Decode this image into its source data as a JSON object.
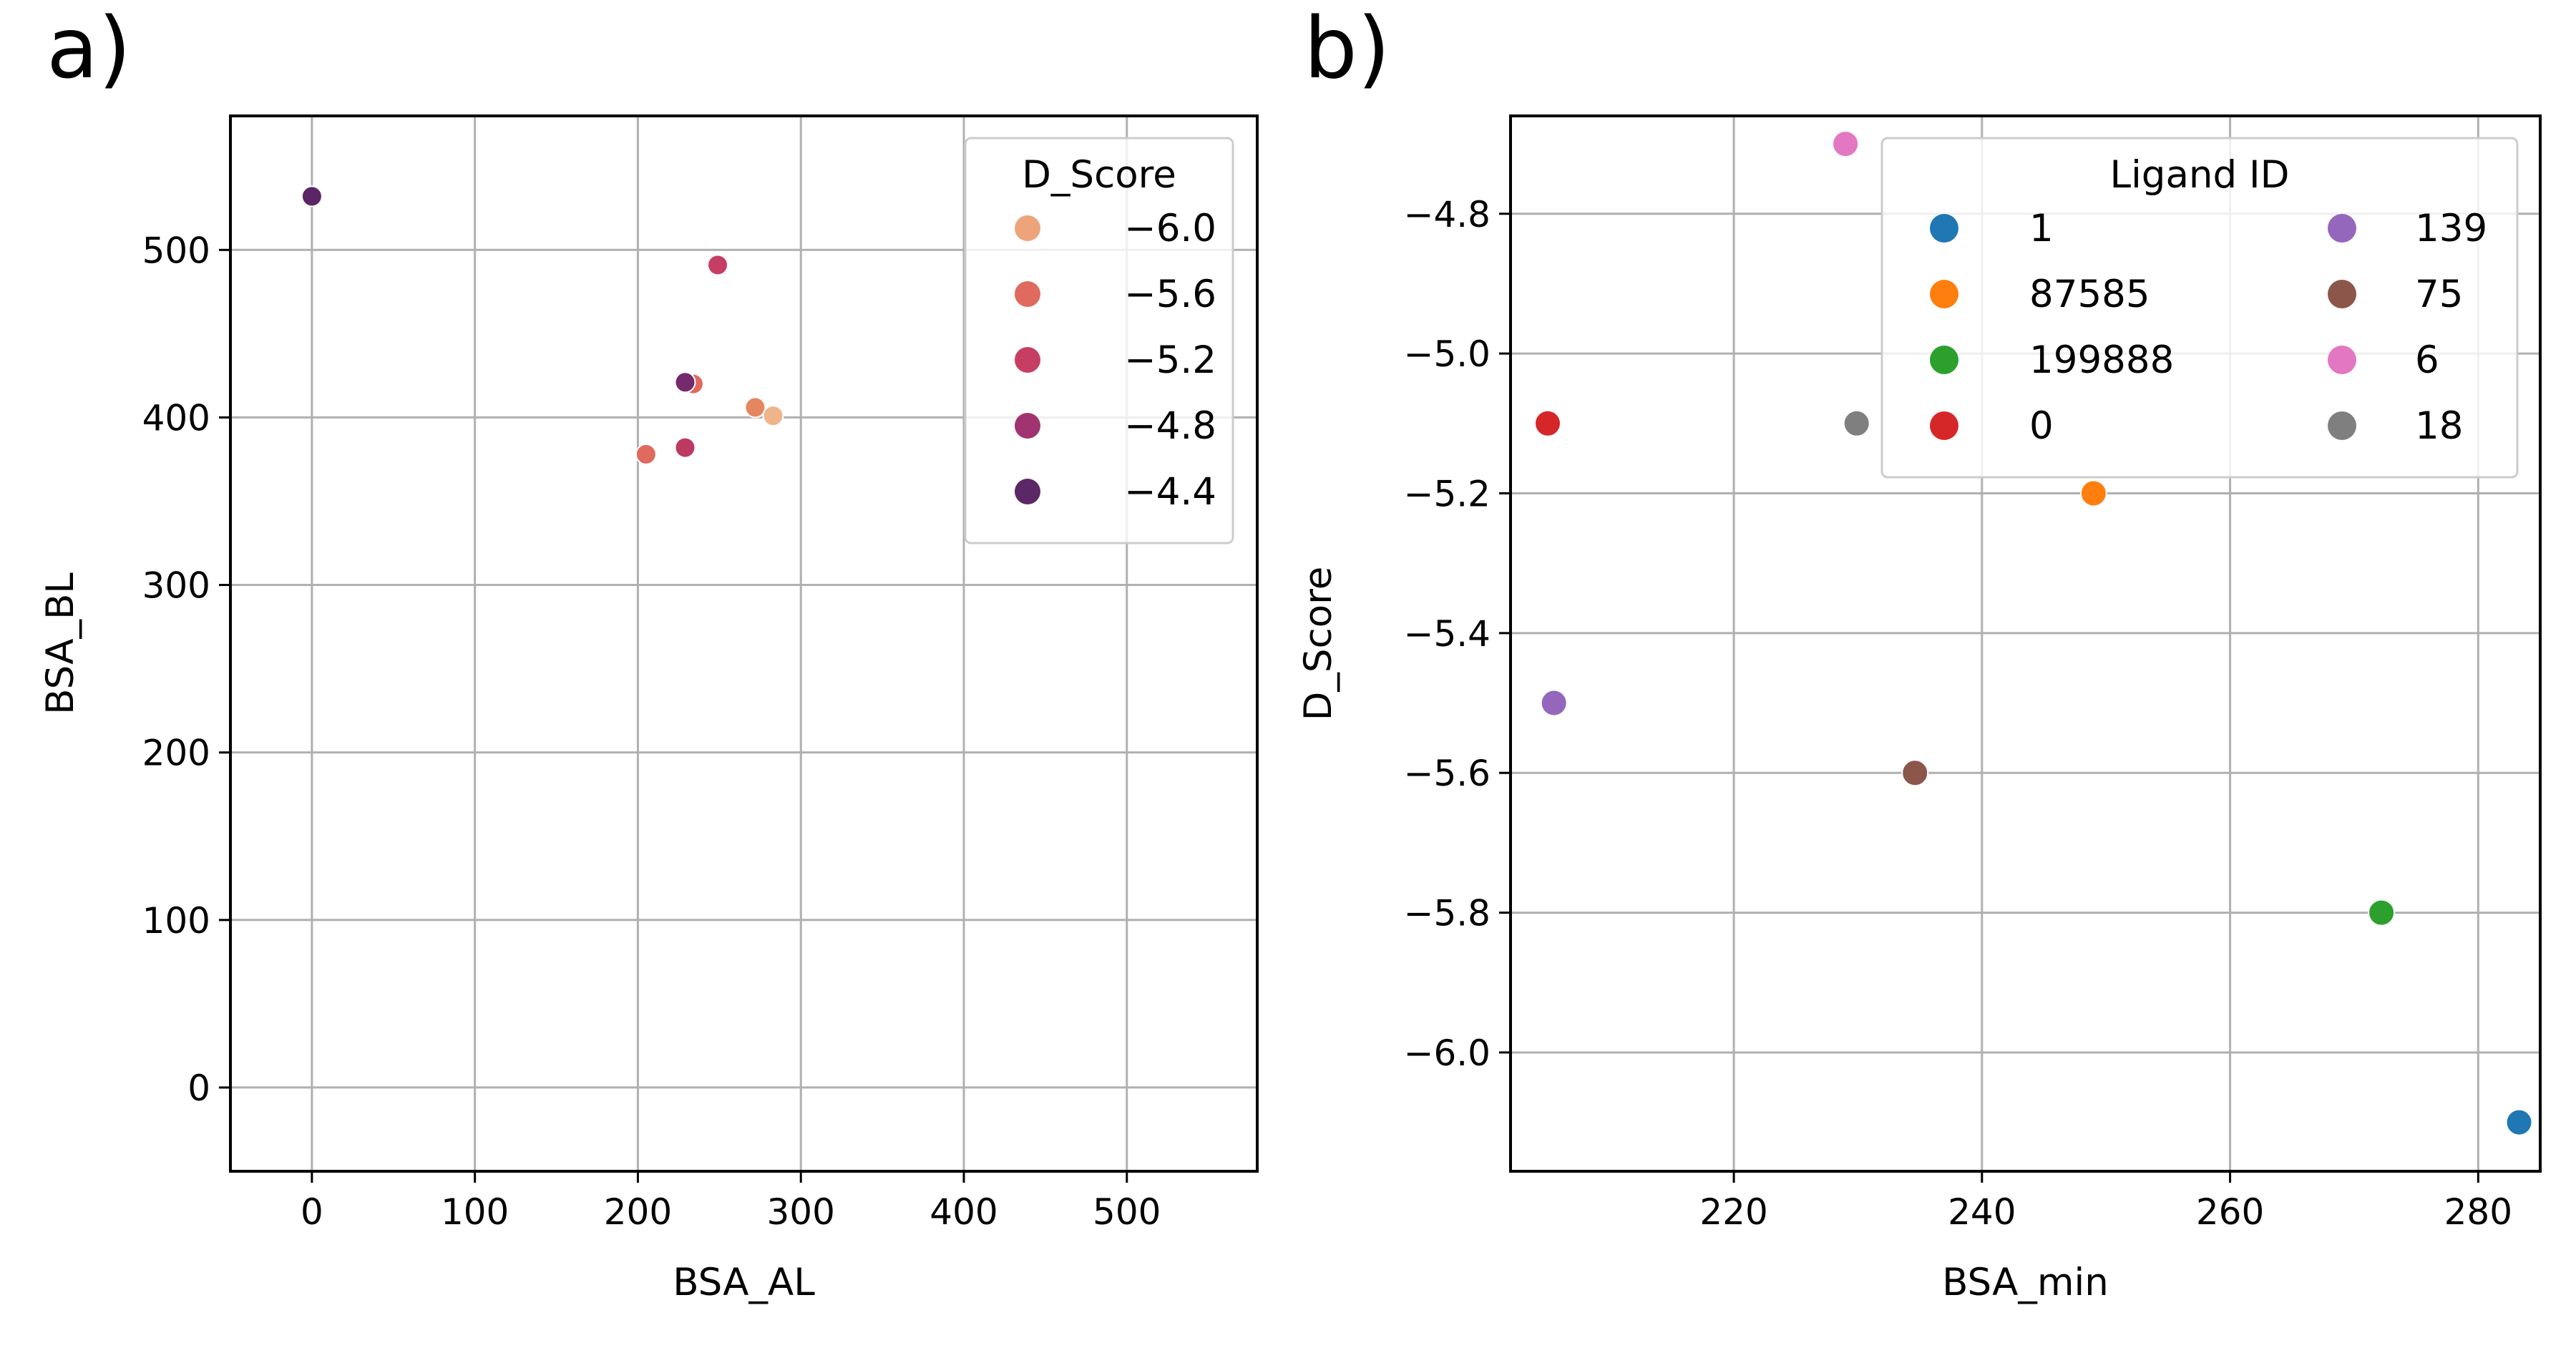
{
  "chart_data": [
    {
      "panel_label": "a)",
      "type": "scatter",
      "xlabel": "BSA_AL",
      "ylabel": "BSA_BL",
      "xlim": [
        -50,
        580
      ],
      "ylim": [
        -50,
        580
      ],
      "xticks": [
        0,
        100,
        200,
        300,
        400,
        500
      ],
      "yticks": [
        0,
        100,
        200,
        300,
        400,
        500
      ],
      "xtick_labels": [
        "0",
        "100",
        "200",
        "300",
        "400",
        "500"
      ],
      "ytick_labels": [
        "0",
        "100",
        "200",
        "300",
        "400",
        "500"
      ],
      "grid": true,
      "legend": {
        "title": "D_Score",
        "placement": "top-right",
        "entries": [
          {
            "label": "−6.0",
            "value": -6.0,
            "color": "#eda47b"
          },
          {
            "label": "−5.6",
            "value": -5.6,
            "color": "#e06a5e"
          },
          {
            "label": "−5.2",
            "value": -5.2,
            "color": "#c63f62"
          },
          {
            "label": "−4.8",
            "value": -4.8,
            "color": "#a13470"
          },
          {
            "label": "−4.4",
            "value": -4.4,
            "color": "#5c2767"
          }
        ]
      },
      "points": [
        {
          "x": 0,
          "y": 532,
          "d_score": -4.4,
          "color": "#5a2665"
        },
        {
          "x": 249,
          "y": 491,
          "d_score": -5.2,
          "color": "#c63f62"
        },
        {
          "x": 234,
          "y": 420,
          "d_score": -5.6,
          "color": "#e06a5e"
        },
        {
          "x": 229,
          "y": 421,
          "d_score": -4.8,
          "color": "#752a6e"
        },
        {
          "x": 272,
          "y": 406,
          "d_score": -5.8,
          "color": "#e6865f"
        },
        {
          "x": 283,
          "y": 401,
          "d_score": -6.1,
          "color": "#efb489"
        },
        {
          "x": 205,
          "y": 378,
          "d_score": -5.5,
          "color": "#e06a5e"
        },
        {
          "x": 229,
          "y": 382,
          "d_score": -5.1,
          "color": "#bc3a61"
        }
      ]
    },
    {
      "panel_label": "b)",
      "type": "scatter",
      "xlabel": "BSA_min",
      "ylabel": "D_Score",
      "xlim": [
        202,
        285
      ],
      "ylim": [
        -6.17,
        -4.66
      ],
      "xticks": [
        220,
        240,
        260,
        280
      ],
      "yticks": [
        -6.0,
        -5.8,
        -5.6,
        -5.4,
        -5.2,
        -5.0,
        -4.8
      ],
      "xtick_labels": [
        "220",
        "240",
        "260",
        "280"
      ],
      "ytick_labels": [
        "−6.0",
        "−5.8",
        "−5.6",
        "−5.4",
        "−5.2",
        "−5.0",
        "−4.8"
      ],
      "grid": true,
      "legend": {
        "title": "Ligand ID",
        "placement": "top-right",
        "columns": 2,
        "entries": [
          {
            "label": "1",
            "color": "#1f77b4"
          },
          {
            "label": "87585",
            "color": "#ff7f0e"
          },
          {
            "label": "199888",
            "color": "#2ca02c"
          },
          {
            "label": "0",
            "color": "#d62728"
          },
          {
            "label": "139",
            "color": "#9467bd"
          },
          {
            "label": "75",
            "color": "#8c564b"
          },
          {
            "label": "6",
            "color": "#e377c2"
          },
          {
            "label": "18",
            "color": "#7f7f7f"
          }
        ]
      },
      "points": [
        {
          "x": 283.3,
          "y": -6.1,
          "ligand": "1",
          "color": "#1f77b4"
        },
        {
          "x": 249.0,
          "y": -5.2,
          "ligand": "87585",
          "color": "#ff7f0e"
        },
        {
          "x": 272.2,
          "y": -5.8,
          "ligand": "199888",
          "color": "#2ca02c"
        },
        {
          "x": 205.0,
          "y": -5.1,
          "ligand": "0",
          "color": "#d62728"
        },
        {
          "x": 205.5,
          "y": -5.5,
          "ligand": "139",
          "color": "#9467bd"
        },
        {
          "x": 234.6,
          "y": -5.6,
          "ligand": "75",
          "color": "#8c564b"
        },
        {
          "x": 229.0,
          "y": -4.7,
          "ligand": "6",
          "color": "#e377c2"
        },
        {
          "x": 229.9,
          "y": -5.1,
          "ligand": "18",
          "color": "#7f7f7f"
        }
      ]
    }
  ]
}
